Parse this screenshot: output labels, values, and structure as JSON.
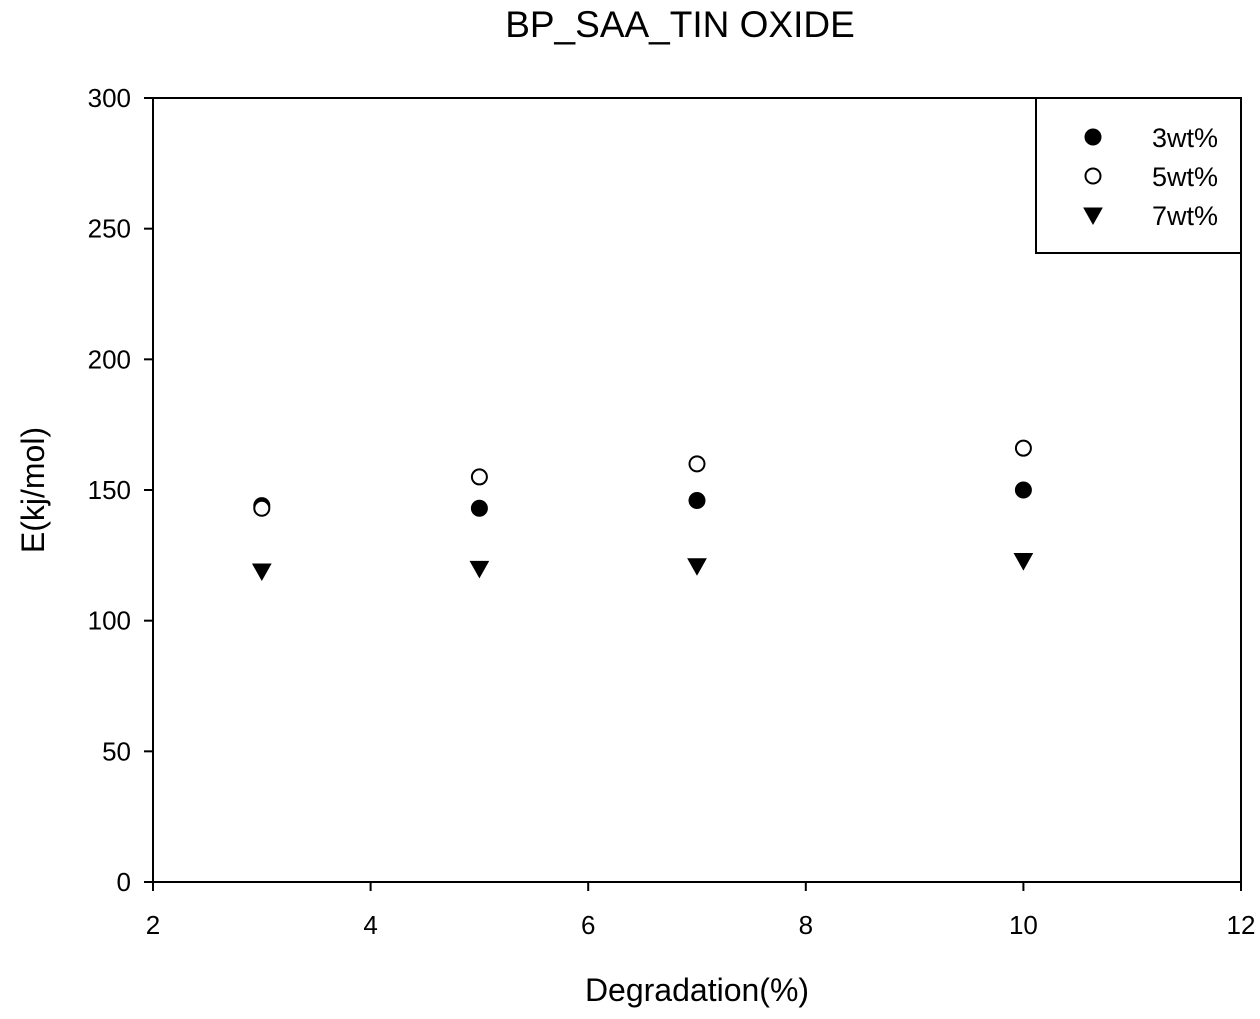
{
  "chart_data": {
    "type": "scatter",
    "title": "BP_SAA_TIN OXIDE",
    "xlabel": "Degradation(%)",
    "ylabel": "E(kj/mol)",
    "xlim": [
      2,
      12
    ],
    "ylim": [
      0,
      300
    ],
    "xticks": [
      2,
      4,
      6,
      8,
      10,
      12
    ],
    "yticks": [
      0,
      50,
      100,
      150,
      200,
      250,
      300
    ],
    "grid": false,
    "legend_position": "top-right",
    "series": [
      {
        "name": "3wt%",
        "marker": "filled-circle",
        "x": [
          3,
          5,
          7,
          10
        ],
        "y": [
          144,
          143,
          146,
          150
        ]
      },
      {
        "name": "5wt%",
        "marker": "open-circle",
        "x": [
          3,
          5,
          7,
          10
        ],
        "y": [
          143,
          155,
          160,
          166
        ]
      },
      {
        "name": "7wt%",
        "marker": "filled-triangle-down",
        "x": [
          3,
          5,
          7,
          10
        ],
        "y": [
          119,
          120,
          121,
          123
        ]
      }
    ]
  }
}
